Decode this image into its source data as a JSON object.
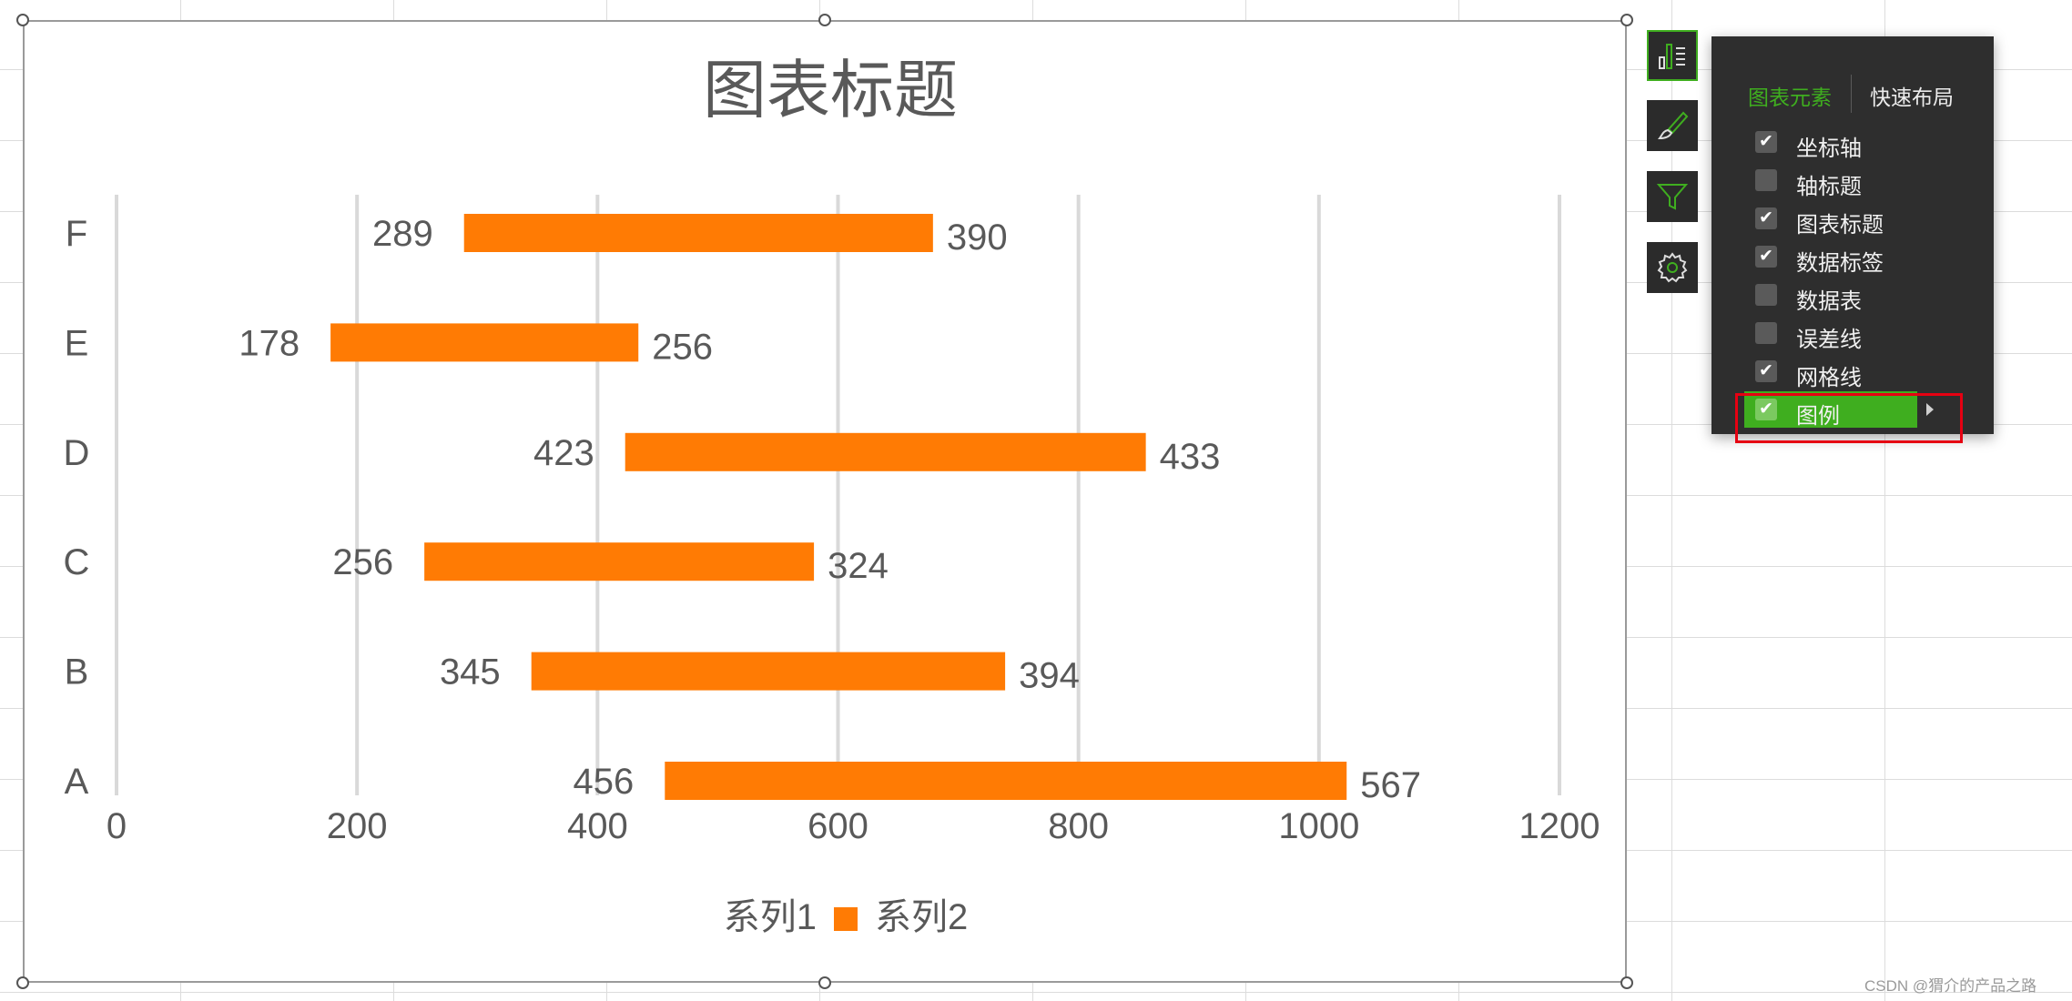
{
  "chart_data": {
    "type": "bar",
    "orientation": "horizontal",
    "stacked": true,
    "title": "图表标题",
    "categories": [
      "A",
      "B",
      "C",
      "D",
      "E",
      "F"
    ],
    "series": [
      {
        "name": "系列1",
        "values": [
          456,
          345,
          256,
          423,
          178,
          289
        ],
        "color": "none"
      },
      {
        "name": "系列2",
        "values": [
          567,
          394,
          324,
          433,
          256,
          390
        ],
        "color": "#ff7b04"
      }
    ],
    "xlim": [
      0,
      1200
    ],
    "x_ticks": [
      "0",
      "200",
      "400",
      "600",
      "800",
      "1000",
      "1200"
    ],
    "grid": true,
    "legend": "bottom",
    "data_labels": true
  },
  "side_toolbar": {
    "buttons": [
      "chart-elements-icon",
      "chart-style-brush-icon",
      "chart-filter-icon",
      "chart-settings-gear-icon"
    ]
  },
  "elements_panel": {
    "tabs": [
      {
        "label": "图表元素",
        "selected": true
      },
      {
        "label": "快速布局",
        "selected": false
      }
    ],
    "options": [
      {
        "label": "坐标轴",
        "checked": true
      },
      {
        "label": "轴标题",
        "checked": false
      },
      {
        "label": "图表标题",
        "checked": true
      },
      {
        "label": "数据标签",
        "checked": true
      },
      {
        "label": "数据表",
        "checked": false
      },
      {
        "label": "误差线",
        "checked": false
      },
      {
        "label": "网格线",
        "checked": true
      },
      {
        "label": "图例",
        "checked": true,
        "highlighted": true,
        "expandable": true
      }
    ],
    "check_mark": "✔"
  },
  "watermark": "CSDN @猬介的产品之路",
  "colors": {
    "accent_green": "#3fae1f",
    "bar_orange": "#ff7b04",
    "highlight_red": "#e60012",
    "panel_bg": "#2e2e2e"
  }
}
